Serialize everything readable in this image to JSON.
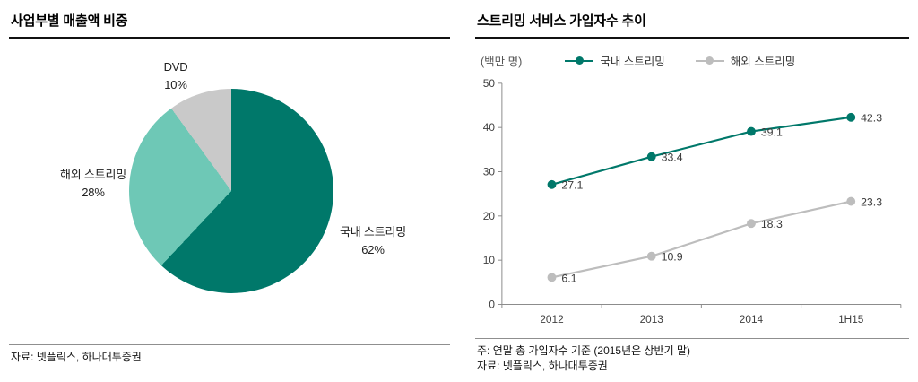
{
  "left_panel": {
    "title": "사업부별 매출액 비중",
    "source": "자료: 넷플릭스, 하나대투증권"
  },
  "right_panel": {
    "title": "스트리밍 서비스 가입자수 추이",
    "unit_label": "(백만 명)",
    "note": "주: 연말 총 가입자수 기준 (2015년은 상반기 말)",
    "source": "자료: 넷플릭스, 하나대투증권"
  },
  "chart_data": [
    {
      "type": "pie",
      "title": "사업부별 매출액 비중",
      "start_angle_deg": 0,
      "direction": "clockwise",
      "slices": [
        {
          "label": "국내 스트리밍",
          "value": 62,
          "display": "62%",
          "color": "#00786a"
        },
        {
          "label": "해외 스트리밍",
          "value": 28,
          "display": "28%",
          "color": "#6ec8b6"
        },
        {
          "label": "DVD",
          "value": 10,
          "display": "10%",
          "color": "#c9c9c9"
        }
      ]
    },
    {
      "type": "line",
      "title": "스트리밍 서비스 가입자수 추이",
      "ylabel": "(백만 명)",
      "categories": [
        "2012",
        "2013",
        "2014",
        "1H15"
      ],
      "series": [
        {
          "name": "국내 스트리밍",
          "color": "#00786a",
          "values": [
            27.1,
            33.4,
            39.1,
            42.3
          ]
        },
        {
          "name": "해외 스트리밍",
          "color": "#bdbdbd",
          "values": [
            6.1,
            10.9,
            18.3,
            23.3
          ]
        }
      ],
      "ylim": [
        0,
        50
      ],
      "yticks": [
        0,
        10,
        20,
        30,
        40,
        50
      ],
      "grid": false,
      "legend_position": "top"
    }
  ]
}
